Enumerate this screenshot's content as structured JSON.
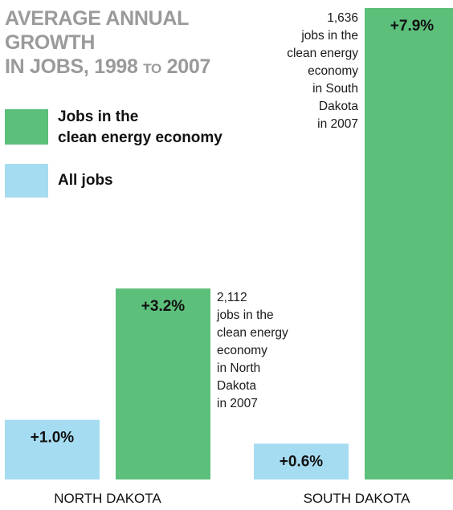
{
  "title_line1": "AVERAGE ANNUAL GROWTH",
  "title_line2_a": "IN JOBS, 1998 ",
  "title_line2_b": "TO",
  "title_line2_c": " 2007",
  "colors": {
    "clean": "#5cbf7a",
    "all": "#a6dcf2"
  },
  "chart_data": {
    "type": "bar",
    "title": "AVERAGE ANNUAL GROWTH IN JOBS, 1998 TO 2007",
    "categories": [
      "NORTH DAKOTA",
      "SOUTH DAKOTA"
    ],
    "series": [
      {
        "name": "All jobs",
        "values": [
          1.0,
          0.6
        ],
        "labels": [
          "+1.0%",
          "+0.6%"
        ]
      },
      {
        "name": "Jobs in the clean energy economy",
        "values": [
          3.2,
          7.9
        ],
        "labels": [
          "+3.2%",
          "+7.9%"
        ]
      }
    ],
    "ylim": [
      0,
      7.9
    ],
    "legend": "left"
  },
  "legend": {
    "clean_line1": "Jobs in the",
    "clean_line2": "clean energy economy",
    "all": "All jobs"
  },
  "annotations": {
    "nd": [
      "2,112",
      "jobs in the",
      "clean energy",
      "economy",
      "in North",
      "Dakota",
      "in 2007"
    ],
    "sd": [
      "1,636",
      "jobs in the",
      "clean energy",
      "economy",
      "in South",
      "Dakota",
      "in 2007"
    ]
  }
}
